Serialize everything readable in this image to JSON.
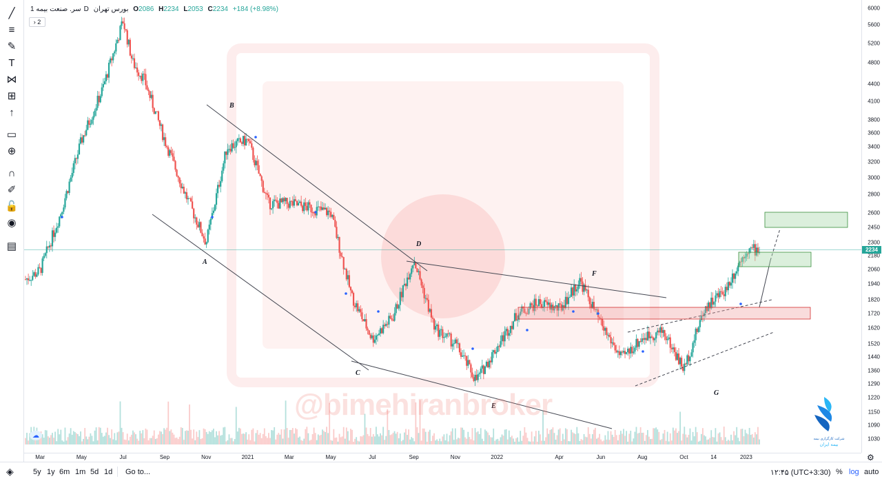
{
  "legend": {
    "symbol": "سر. صنعت بیمه",
    "interval": "1D",
    "exchange": "بورس تهران",
    "open_label": "O",
    "open": "2086",
    "high_label": "H",
    "high": "2234",
    "low_label": "L",
    "low": "2053",
    "close_label": "C",
    "close": "2234",
    "change": "+184 (+8.98%)",
    "collapse_label": "2"
  },
  "price_axis": {
    "ticks": [
      "6000",
      "5600",
      "5200",
      "4800",
      "4400",
      "4100",
      "3800",
      "3600",
      "3400",
      "3200",
      "3000",
      "2800",
      "2600",
      "2450",
      "2300",
      "2180",
      "2060",
      "1940",
      "1820",
      "1720",
      "1620",
      "1520",
      "1440",
      "1360",
      "1290",
      "1220",
      "1150",
      "1090",
      "1030"
    ],
    "current_price": "2234"
  },
  "time_axis": {
    "ticks": [
      "Mar",
      "May",
      "Jul",
      "Sep",
      "Nov",
      "2021",
      "Mar",
      "May",
      "Jul",
      "Sep",
      "Nov",
      "2022",
      "Apr",
      "Jun",
      "Aug",
      "Oct",
      "14",
      "2023"
    ]
  },
  "bottom_bar": {
    "ranges": [
      "5y",
      "1y",
      "6m",
      "1m",
      "5d",
      "1d"
    ],
    "goto": "Go to...",
    "clock": "۱۲:۴۵ (UTC+3:30)",
    "percent": "%",
    "log": "log",
    "auto": "auto"
  },
  "wave_labels": [
    "A",
    "B",
    "C",
    "D",
    "E",
    "F",
    "G"
  ],
  "watermark_text": "@bimehiranbroker",
  "logo_text_1": "شرکت کارگزاری بیمه",
  "logo_text_2": "بیمه ایران",
  "colors": {
    "up": "#26a69a",
    "down": "#ef5350",
    "accent": "#2962ff",
    "zone_red": "#ef9a9a",
    "zone_green": "#a5d6a7"
  },
  "tools": [
    "trend-line-icon",
    "fib-icon",
    "brush-icon",
    "text-icon",
    "pattern-icon",
    "measure-icon",
    "arrow-up-icon",
    "ruler-icon",
    "zoom-in-icon",
    "magnet-icon",
    "lock-draw-icon",
    "lock-icon",
    "eye-icon",
    "trash-icon",
    "layers-icon"
  ],
  "chart_data": {
    "type": "candlestick",
    "symbol": "سر. صنعت بیمه",
    "interval": "1D",
    "y_scale": "log",
    "ylim": [
      1030,
      6000
    ],
    "x_range": [
      "2020-02",
      "2023-01"
    ],
    "last": {
      "open": 2086,
      "high": 2234,
      "low": 2053,
      "close": 2234,
      "change": 184,
      "change_pct": 8.98
    },
    "price_path": [
      {
        "x": "2020-02",
        "y": 1950
      },
      {
        "x": "2020-03",
        "y": 2050
      },
      {
        "x": "2020-04",
        "y": 2600
      },
      {
        "x": "2020-05",
        "y": 3500
      },
      {
        "x": "2020-06",
        "y": 4300
      },
      {
        "x": "2020-07",
        "y": 5700
      },
      {
        "x": "2020-07-15",
        "y": 4800
      },
      {
        "x": "2020-08",
        "y": 4500
      },
      {
        "x": "2020-09",
        "y": 3500
      },
      {
        "x": "2020-10",
        "y": 2800
      },
      {
        "x": "2020-11",
        "y": 2300
      },
      {
        "x": "2020-12",
        "y": 3400
      },
      {
        "x": "2021-01",
        "y": 3500
      },
      {
        "x": "2021-02",
        "y": 2700
      },
      {
        "x": "2021-03",
        "y": 2700
      },
      {
        "x": "2021-05",
        "y": 2600
      },
      {
        "x": "2021-06",
        "y": 1850
      },
      {
        "x": "2021-07",
        "y": 1550
      },
      {
        "x": "2021-08",
        "y": 1700
      },
      {
        "x": "2021-09",
        "y": 2150
      },
      {
        "x": "2021-10",
        "y": 1620
      },
      {
        "x": "2021-11",
        "y": 1520
      },
      {
        "x": "2021-12",
        "y": 1310
      },
      {
        "x": "2022-01",
        "y": 1500
      },
      {
        "x": "2022-02",
        "y": 1720
      },
      {
        "x": "2022-03",
        "y": 1800
      },
      {
        "x": "2022-04",
        "y": 1750
      },
      {
        "x": "2022-05",
        "y": 1970
      },
      {
        "x": "2022-06",
        "y": 1650
      },
      {
        "x": "2022-07",
        "y": 1430
      },
      {
        "x": "2022-08",
        "y": 1560
      },
      {
        "x": "2022-09",
        "y": 1600
      },
      {
        "x": "2022-10",
        "y": 1370
      },
      {
        "x": "2022-11",
        "y": 1760
      },
      {
        "x": "2022-12",
        "y": 1900
      },
      {
        "x": "2023-01",
        "y": 2234
      }
    ],
    "annotations": {
      "wave_points": [
        {
          "label": "A",
          "x": "2020-11",
          "y": 2250
        },
        {
          "label": "B",
          "x": "2020-12",
          "y": 4100
        },
        {
          "label": "C",
          "x": "2021-06",
          "y": 1440
        },
        {
          "label": "D",
          "x": "2021-09",
          "y": 2300
        },
        {
          "label": "E",
          "x": "2021-12",
          "y": 1260
        },
        {
          "label": "F",
          "x": "2022-05",
          "y": 2100
        },
        {
          "label": "G",
          "x": "2022-10",
          "y": 1300
        }
      ],
      "resistance_zone": {
        "x_start": "2022-02",
        "x_end": "2023-02",
        "y_low": 1760,
        "y_high": 1840
      },
      "target_zone_1": {
        "x_start": "2022-12",
        "x_end": "2023-02",
        "y_low": 2160,
        "y_high": 2300
      },
      "target_zone_2": {
        "x_start": "2022-12",
        "x_end": "2023-03",
        "y_low": 2530,
        "y_high": 2700
      }
    }
  }
}
